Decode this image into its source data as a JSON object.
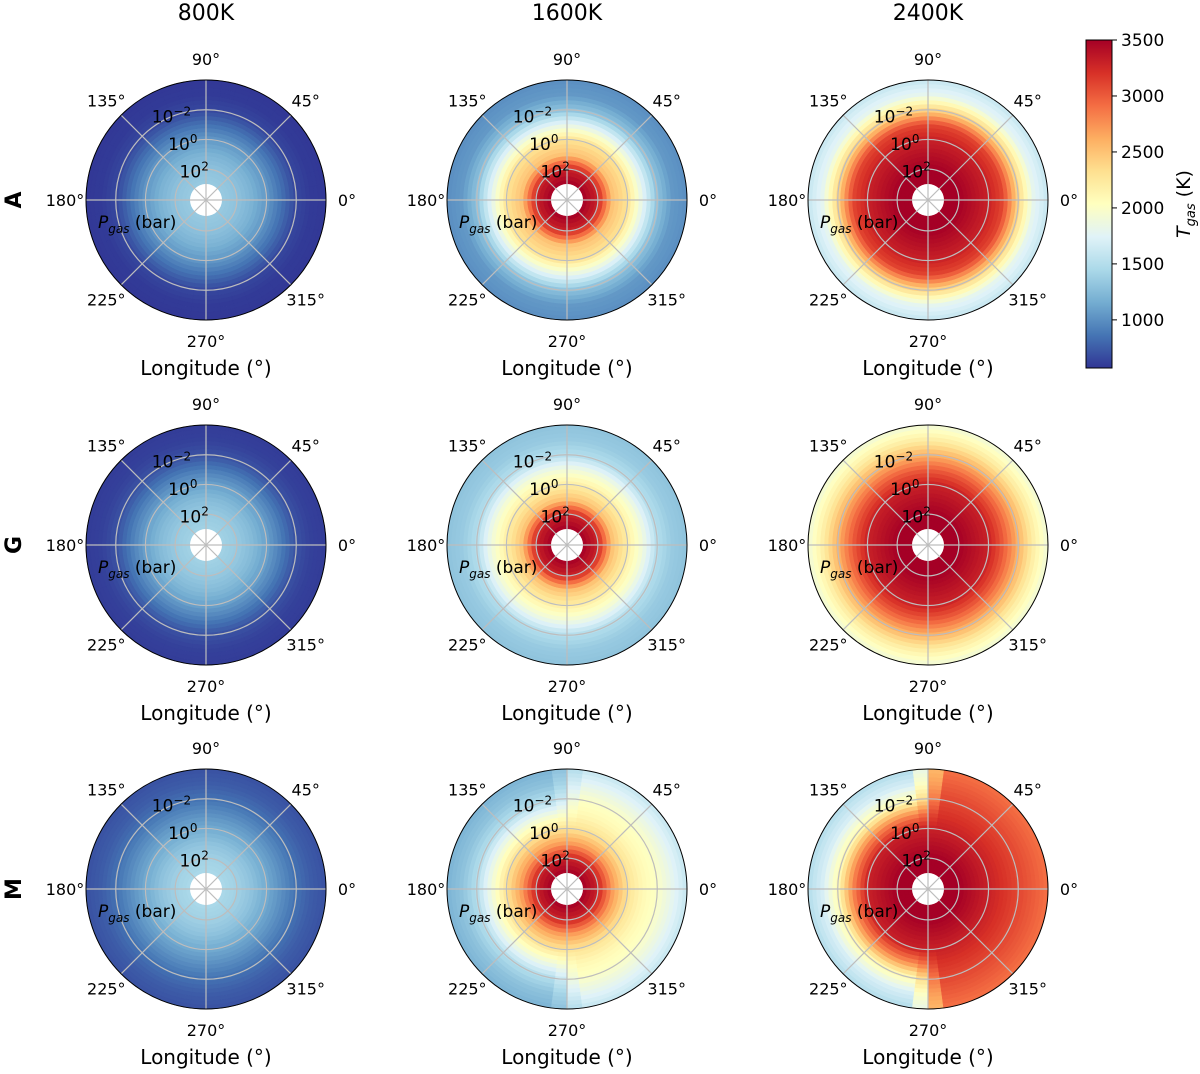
{
  "chart_data": {
    "type": "heatmap",
    "projection": "polar",
    "columns": [
      "800K",
      "1600K",
      "2400K"
    ],
    "rows": [
      "A",
      "G",
      "M"
    ],
    "xlabel": "Longitude (°)",
    "angle_ticks": [
      {
        "deg": 0,
        "label": "0°"
      },
      {
        "deg": 45,
        "label": "45°"
      },
      {
        "deg": 90,
        "label": "90°"
      },
      {
        "deg": 135,
        "label": "135°"
      },
      {
        "deg": 180,
        "label": "180°"
      },
      {
        "deg": 225,
        "label": "225°"
      },
      {
        "deg": 270,
        "label": "270°"
      },
      {
        "deg": 315,
        "label": "315°"
      }
    ],
    "radial_axis": {
      "label_main": "P",
      "label_sub": "gas",
      "label_unit": " (bar)",
      "scale": "log",
      "range_log10": [
        3,
        -4
      ],
      "ticks": [
        {
          "log10": -2,
          "base": "10",
          "exp": "−2"
        },
        {
          "log10": 0,
          "base": "10",
          "exp": "0"
        },
        {
          "log10": 2,
          "base": "10",
          "exp": "2"
        }
      ]
    },
    "colorbar": {
      "label_main": "T",
      "label_sub": "gas",
      "label_unit": " (K)",
      "colormap": "RdYlBu_r",
      "range": [
        570,
        3500
      ],
      "ticks": [
        1000,
        1500,
        2000,
        2500,
        3000,
        3500
      ]
    },
    "pressure_levels_log10": [
      -4,
      -3,
      -2,
      -1,
      0,
      1,
      2,
      3
    ],
    "panels": [
      {
        "row": "A",
        "column": "800K",
        "T_west": [
          580,
          590,
          650,
          850,
          1050,
          1200,
          1300,
          1350
        ]
      },
      {
        "row": "A",
        "column": "1600K",
        "T_west": [
          1000,
          1050,
          1300,
          1800,
          2300,
          2500,
          3300,
          3500
        ]
      },
      {
        "row": "A",
        "column": "2400K",
        "T_west": [
          1600,
          1800,
          2400,
          3100,
          3300,
          3400,
          3500,
          3500
        ]
      },
      {
        "row": "G",
        "column": "800K",
        "T_west": [
          600,
          620,
          700,
          900,
          1100,
          1250,
          1350,
          1400
        ]
      },
      {
        "row": "G",
        "column": "1600K",
        "T_west": [
          1300,
          1350,
          1500,
          1900,
          2200,
          2500,
          3300,
          3500
        ]
      },
      {
        "row": "G",
        "column": "2400K",
        "T_west": [
          1900,
          2200,
          2600,
          3000,
          3300,
          3400,
          3500,
          3500
        ]
      },
      {
        "row": "M",
        "column": "800K",
        "T_west": [
          700,
          750,
          850,
          1000,
          1150,
          1300,
          1400,
          1450
        ]
      },
      {
        "row": "M",
        "column": "1600K",
        "T_west": [
          1200,
          1300,
          1500,
          1900,
          2300,
          2700,
          3300,
          3500
        ],
        "T_east": [
          1600,
          1800,
          2000,
          2100,
          2300,
          2700,
          3300,
          3500
        ]
      },
      {
        "row": "M",
        "column": "2400K",
        "T_west": [
          1500,
          1700,
          2100,
          2800,
          3300,
          3400,
          3500,
          3500
        ],
        "T_east": [
          2900,
          3000,
          3100,
          3200,
          3300,
          3400,
          3500,
          3500
        ]
      }
    ]
  }
}
